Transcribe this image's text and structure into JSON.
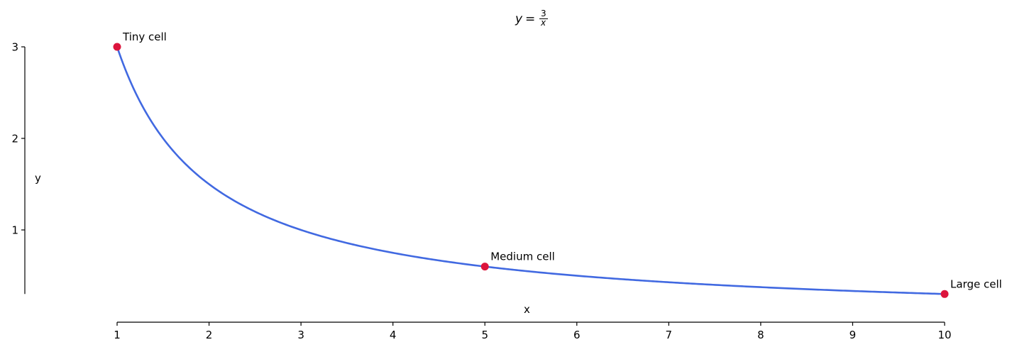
{
  "chart_data": {
    "type": "line",
    "title": "y = 3/x",
    "title_parts": {
      "lhs": "y",
      "eq": "=",
      "numerator": "3",
      "denominator": "x"
    },
    "xlabel": "x",
    "ylabel": "y",
    "xlim": [
      1,
      10
    ],
    "ylim": [
      0.3,
      3
    ],
    "xticks": [
      1,
      2,
      3,
      4,
      5,
      6,
      7,
      8,
      9,
      10
    ],
    "xtick_labels": [
      "1",
      "2",
      "3",
      "4",
      "5",
      "6",
      "7",
      "8",
      "9",
      "10"
    ],
    "yticks": [
      1,
      2,
      3
    ],
    "ytick_labels": [
      "1",
      "2",
      "3"
    ],
    "grid": false,
    "legend": null,
    "series": [
      {
        "name": "y = 3/x",
        "function": "3/x",
        "color": "#4169e1",
        "x": [
          1,
          1.5,
          2,
          2.5,
          3,
          4,
          5,
          6,
          7,
          8,
          9,
          10
        ],
        "y": [
          3,
          2,
          1.5,
          1.2,
          1,
          0.75,
          0.6,
          0.5,
          0.4286,
          0.375,
          0.3333,
          0.3
        ]
      }
    ],
    "points": [
      {
        "label": "Tiny cell",
        "x": 1,
        "y": 3,
        "color": "#dc143c"
      },
      {
        "label": "Medium cell",
        "x": 5,
        "y": 0.6,
        "color": "#dc143c"
      },
      {
        "label": "Large cell",
        "x": 10,
        "y": 0.3,
        "color": "#dc143c"
      }
    ]
  }
}
